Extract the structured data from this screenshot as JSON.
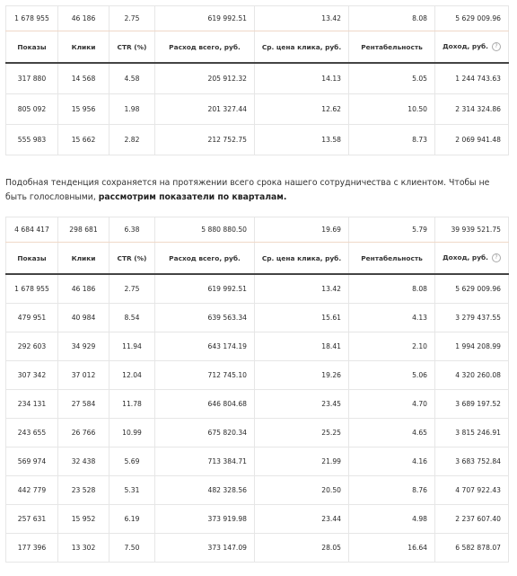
{
  "headers": [
    "Показы",
    "Клики",
    "CTR (%)",
    "Расход всего, руб.",
    "Ср. цена клика, руб.",
    "Рентабельность",
    "Доход, руб."
  ],
  "help_icon": "?",
  "table1": {
    "total": [
      "1 678 955",
      "46 186",
      "2.75",
      "619 992.51",
      "13.42",
      "8.08",
      "5 629 009.96"
    ],
    "rows": [
      [
        "317 880",
        "14 568",
        "4.58",
        "205 912.32",
        "14.13",
        "5.05",
        "1 244 743.63"
      ],
      [
        "805 092",
        "15 956",
        "1.98",
        "201 327.44",
        "12.62",
        "10.50",
        "2 314 324.86"
      ],
      [
        "555 983",
        "15 662",
        "2.82",
        "212 752.75",
        "13.58",
        "8.73",
        "2 069 941.48"
      ]
    ]
  },
  "paragraph": {
    "text": "Подобная тенденция сохраняется на протяжении всего срока нашего сотрудничества с клиентом. Чтобы не быть голословными, ",
    "bold": "рассмотрим показатели по кварталам."
  },
  "table2": {
    "total": [
      "4 684 417",
      "298 681",
      "6.38",
      "5 880 880.50",
      "19.69",
      "5.79",
      "39 939 521.75"
    ],
    "rows": [
      [
        "1 678 955",
        "46 186",
        "2.75",
        "619 992.51",
        "13.42",
        "8.08",
        "5 629 009.96"
      ],
      [
        "479 951",
        "40 984",
        "8.54",
        "639 563.34",
        "15.61",
        "4.13",
        "3 279 437.55"
      ],
      [
        "292 603",
        "34 929",
        "11.94",
        "643 174.19",
        "18.41",
        "2.10",
        "1 994 208.99"
      ],
      [
        "307 342",
        "37 012",
        "12.04",
        "712 745.10",
        "19.26",
        "5.06",
        "4 320 260.08"
      ],
      [
        "234 131",
        "27 584",
        "11.78",
        "646 804.68",
        "23.45",
        "4.70",
        "3 689 197.52"
      ],
      [
        "243 655",
        "26 766",
        "10.99",
        "675 820.34",
        "25.25",
        "4.65",
        "3 815 246.91"
      ],
      [
        "569 974",
        "32 438",
        "5.69",
        "713 384.71",
        "21.99",
        "4.16",
        "3 683 752.84"
      ],
      [
        "442 779",
        "23 528",
        "5.31",
        "482 328.56",
        "20.50",
        "8.76",
        "4 707 922.43"
      ],
      [
        "257 631",
        "15 952",
        "6.19",
        "373 919.98",
        "23.44",
        "4.98",
        "2 237 607.40"
      ],
      [
        "177 396",
        "13 302",
        "7.50",
        "373 147.09",
        "28.05",
        "16.64",
        "6 582 878.07"
      ]
    ]
  }
}
